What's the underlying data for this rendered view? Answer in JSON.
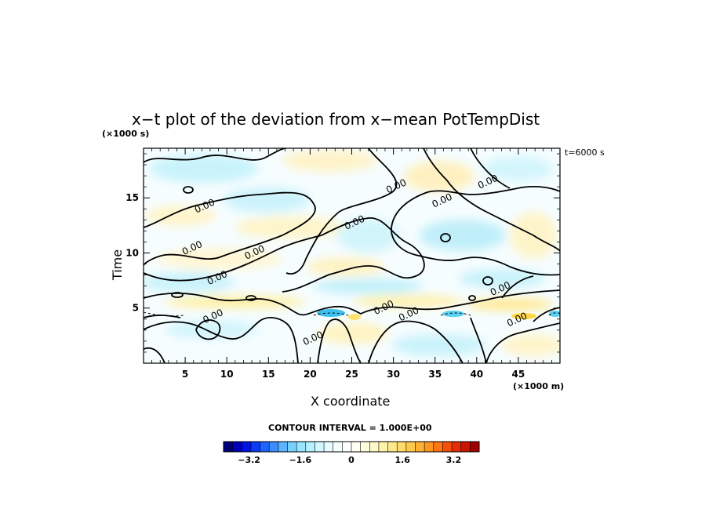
{
  "chart_data": {
    "type": "heatmap",
    "title": "x−t plot of the deviation from x−mean PotTempDist",
    "xlabel": "X coordinate",
    "ylabel": "Time",
    "x_units": "(×1000 m)",
    "y_units": "(×1000 s)",
    "annotation": "t=6000 s",
    "contour_interval_text": "CONTOUR INTERVAL = 1.000E+00",
    "xlim": [
      0,
      50
    ],
    "ylim": [
      0,
      19.5
    ],
    "x_ticks": [
      5,
      10,
      15,
      20,
      25,
      30,
      35,
      40,
      45
    ],
    "y_ticks": [
      5,
      10,
      15
    ],
    "contour_labels": [
      {
        "text": "0.00",
        "x": 7.5,
        "y": 14.0
      },
      {
        "text": "0.00",
        "x": 6.0,
        "y": 10.2
      },
      {
        "text": "0.00",
        "x": 9.0,
        "y": 7.5
      },
      {
        "text": "0.00",
        "x": 13.5,
        "y": 9.8
      },
      {
        "text": "0.00",
        "x": 8.5,
        "y": 4.0
      },
      {
        "text": "0.00",
        "x": 20.5,
        "y": 2.0
      },
      {
        "text": "0.00",
        "x": 25.5,
        "y": 12.5
      },
      {
        "text": "0.00",
        "x": 30.5,
        "y": 15.8
      },
      {
        "text": "0.00",
        "x": 36.0,
        "y": 14.5
      },
      {
        "text": "0.00",
        "x": 41.5,
        "y": 16.2
      },
      {
        "text": "0.00",
        "x": 29.0,
        "y": 4.8
      },
      {
        "text": "0.00",
        "x": 32.0,
        "y": 4.2
      },
      {
        "text": "0.00",
        "x": 43.0,
        "y": 6.5
      },
      {
        "text": "0.00",
        "x": 45.0,
        "y": 3.7
      }
    ],
    "colorbar": {
      "colors": [
        "#00007a",
        "#0000b8",
        "#0014e6",
        "#0a3cf5",
        "#1e64ff",
        "#3c8cff",
        "#5ab4ff",
        "#78d2ff",
        "#96e6ff",
        "#b4f0ff",
        "#cff8ff",
        "#e6fcff",
        "#f4feff",
        "#ffffff",
        "#fffff2",
        "#fffde0",
        "#fff9c8",
        "#fff3aa",
        "#ffea8a",
        "#ffdb6a",
        "#ffc84c",
        "#ffb030",
        "#ff9420",
        "#ff7414",
        "#f5500a",
        "#e62d05",
        "#c81400",
        "#a00000"
      ],
      "tick_labels": [
        "−3.2",
        "−1.6",
        "0",
        "1.6",
        "3.2"
      ],
      "tick_values": [
        -3.2,
        -1.6,
        0,
        1.6,
        3.2
      ],
      "range": [
        -4.0,
        4.0
      ]
    },
    "colors": {
      "contour_line": "#000000",
      "frame": "#000000"
    }
  }
}
